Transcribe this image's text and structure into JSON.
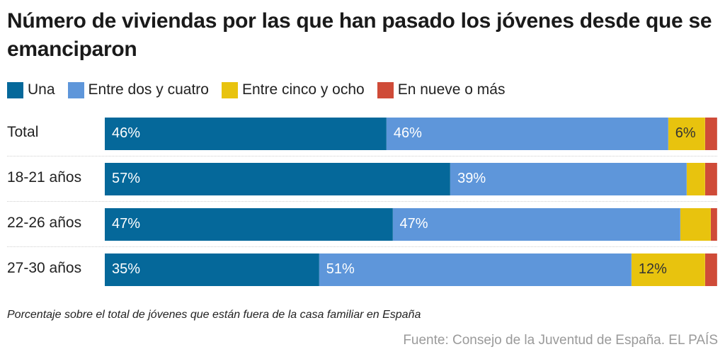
{
  "title": "Número de viviendas por las que han pasado los jóvenes desde que se emanciparon",
  "legend": [
    {
      "label": "Una",
      "color": "#05689a"
    },
    {
      "label": "Entre dos y cuatro",
      "color": "#5e96da"
    },
    {
      "label": "Entre cinco y ocho",
      "color": "#e8c30e"
    },
    {
      "label": "En nueve o más",
      "color": "#cf4b38"
    }
  ],
  "note": "Porcentaje sobre el total de jóvenes que están fuera de la casa familiar en España",
  "source": "Fuente: Consejo de la Juventud de España. EL PAÍS",
  "chart_data": {
    "type": "bar",
    "orientation": "horizontal",
    "stacked": true,
    "normalized": true,
    "title": "Número de viviendas por las que han pasado los jóvenes desde que se emanciparon",
    "categories": [
      "Total",
      "18-21 años",
      "22-26 años",
      "27-30 años"
    ],
    "series": [
      {
        "name": "Una",
        "color": "#05689a",
        "values": [
          46,
          57,
          47,
          35
        ],
        "labels": [
          "46%",
          "57%",
          "47%",
          "35%"
        ],
        "label_color": "#ffffff"
      },
      {
        "name": "Entre dos y cuatro",
        "color": "#5e96da",
        "values": [
          46,
          39,
          47,
          51
        ],
        "labels": [
          "46%",
          "39%",
          "47%",
          "51%"
        ],
        "label_color": "#ffffff"
      },
      {
        "name": "Entre cinco y ocho",
        "color": "#e8c30e",
        "values": [
          6,
          3,
          5,
          12
        ],
        "labels": [
          "6%",
          "",
          "",
          "12%"
        ],
        "label_color": "#333333"
      },
      {
        "name": "En nueve o más",
        "color": "#cf4b38",
        "values": [
          2,
          2,
          1,
          2
        ],
        "labels": [
          "",
          "",
          "",
          ""
        ],
        "label_color": "#ffffff"
      }
    ],
    "xlabel": "",
    "ylabel": "",
    "xlim": [
      0,
      100
    ],
    "grid": false,
    "legend_position": "top-left",
    "note": "Porcentaje sobre el total de jóvenes que están fuera de la casa familiar en España"
  }
}
